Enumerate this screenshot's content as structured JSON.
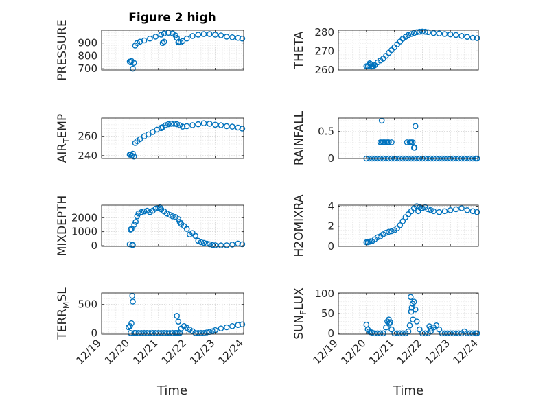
{
  "figure": {
    "title": "Figure 2 high",
    "x_axis_label": "Time",
    "x_tick_labels": [
      "12/19",
      "12/20",
      "12/21",
      "12/22",
      "12/23",
      "12/24"
    ],
    "marker_color": "#0072BD",
    "grid_color": "#d4d4d4"
  },
  "chart_data": [
    {
      "type": "scatter",
      "ylabel": "PRESSURE",
      "ylim": [
        690,
        1000
      ],
      "xlim": [
        0,
        5
      ],
      "yticks": [
        700,
        800,
        900
      ],
      "ytick_labels": [
        "700",
        "800",
        "900"
      ],
      "grid": true,
      "x": [
        0.99,
        1.02,
        1.05,
        1.1,
        1.14,
        1.18,
        1.25,
        1.35,
        1.5,
        1.7,
        1.9,
        2.1,
        2.2,
        2.35,
        2.5,
        2.6,
        2.65,
        2.72,
        2.78,
        2.85,
        3.0,
        3.2,
        3.4,
        3.6,
        3.8,
        4.0,
        4.2,
        4.4,
        4.6,
        4.8,
        4.95,
        2.15,
        2.2,
        2.7
      ],
      "y": [
        755,
        750,
        760,
        700,
        745,
        880,
        900,
        910,
        920,
        935,
        950,
        965,
        975,
        980,
        975,
        960,
        940,
        910,
        905,
        915,
        935,
        955,
        965,
        970,
        970,
        965,
        960,
        950,
        945,
        940,
        935,
        900,
        910,
        905
      ]
    },
    {
      "type": "scatter",
      "ylabel": "THETA",
      "ylim": [
        260,
        281
      ],
      "xlim": [
        0,
        5
      ],
      "yticks": [
        260,
        270,
        280
      ],
      "ytick_labels": [
        "260",
        "270",
        "280"
      ],
      "grid": true,
      "x": [
        1.0,
        1.05,
        1.1,
        1.15,
        1.2,
        1.25,
        1.3,
        1.4,
        1.5,
        1.6,
        1.7,
        1.8,
        1.9,
        2.0,
        2.1,
        2.2,
        2.3,
        2.4,
        2.5,
        2.6,
        2.7,
        2.8,
        2.9,
        3.0,
        3.1,
        3.2,
        3.4,
        3.6,
        3.8,
        4.0,
        4.2,
        4.4,
        4.6,
        4.8,
        4.95,
        1.12,
        1.18
      ],
      "y": [
        262,
        262,
        262.5,
        263,
        262,
        262,
        262.5,
        264,
        265,
        266,
        267.5,
        269,
        270.5,
        272,
        273.5,
        275,
        276.5,
        277.5,
        278.5,
        279,
        279.5,
        280,
        280.2,
        280.3,
        280.2,
        280,
        279.5,
        279.3,
        279,
        278.8,
        278.5,
        278,
        277.5,
        277,
        276.8,
        263.5,
        261.8
      ]
    },
    {
      "type": "scatter",
      "ylabel": "AIR_TEMP",
      "ylim": [
        237,
        279
      ],
      "xlim": [
        0,
        5
      ],
      "yticks": [
        240,
        260
      ],
      "ytick_labels": [
        "240",
        "260"
      ],
      "grid": true,
      "x": [
        0.99,
        1.02,
        1.06,
        1.1,
        1.14,
        1.18,
        1.25,
        1.35,
        1.5,
        1.65,
        1.8,
        1.95,
        2.1,
        2.25,
        2.35,
        2.45,
        2.55,
        2.65,
        2.75,
        2.85,
        3.0,
        3.2,
        3.4,
        3.6,
        3.8,
        4.0,
        4.2,
        4.4,
        4.6,
        4.8,
        4.95,
        2.1,
        2.15
      ],
      "y": [
        241,
        241,
        240,
        242,
        239,
        253,
        255,
        257,
        260,
        262,
        264.5,
        267,
        269,
        271.5,
        272.5,
        273,
        273,
        272.5,
        271.5,
        270,
        270.5,
        271.5,
        272.5,
        273.5,
        273,
        272,
        271.5,
        270.5,
        270,
        269,
        268,
        268.5,
        269.5
      ]
    },
    {
      "type": "scatter",
      "ylabel": "RAINFALL",
      "ylim": [
        0,
        0.75
      ],
      "xlim": [
        0,
        5
      ],
      "yticks": [
        0,
        0.5
      ],
      "ytick_labels": [
        "0",
        "0.5"
      ],
      "grid": true,
      "x": [
        1.0,
        1.1,
        1.2,
        1.3,
        1.4,
        1.5,
        1.6,
        1.7,
        1.8,
        1.9,
        2.0,
        2.1,
        2.2,
        2.3,
        2.4,
        2.5,
        2.6,
        2.7,
        2.8,
        2.9,
        3.0,
        3.1,
        3.2,
        3.3,
        3.4,
        3.5,
        3.6,
        3.7,
        3.8,
        3.9,
        4.0,
        4.1,
        4.2,
        4.3,
        4.4,
        4.5,
        4.6,
        4.7,
        4.8,
        4.9,
        4.95,
        1.5,
        1.55,
        1.6,
        1.65,
        1.7,
        1.75,
        1.8,
        1.9,
        2.45,
        2.55,
        2.6,
        2.65,
        2.7,
        2.72,
        1.55,
        2.75
      ],
      "y": [
        0,
        0,
        0,
        0,
        0,
        0,
        0,
        0,
        0,
        0,
        0,
        0,
        0,
        0,
        0,
        0,
        0,
        0,
        0,
        0,
        0,
        0,
        0,
        0,
        0,
        0,
        0,
        0,
        0,
        0,
        0,
        0,
        0,
        0,
        0,
        0,
        0,
        0,
        0,
        0,
        0,
        0.3,
        0.3,
        0.3,
        0.3,
        0.3,
        0.3,
        0.3,
        0.3,
        0.3,
        0.3,
        0.3,
        0.3,
        0.2,
        0.2,
        0.7,
        0.6
      ]
    },
    {
      "type": "scatter",
      "ylabel": "MIXDEPTH",
      "ylim": [
        -50,
        2900
      ],
      "xlim": [
        0,
        5
      ],
      "yticks": [
        0,
        1000,
        2000
      ],
      "ytick_labels": [
        "0",
        "1000",
        "2000"
      ],
      "grid": true,
      "x": [
        0.99,
        1.02,
        1.05,
        1.1,
        1.15,
        1.2,
        1.25,
        1.3,
        1.4,
        1.5,
        1.6,
        1.7,
        1.8,
        1.9,
        2.0,
        2.05,
        2.1,
        2.2,
        2.3,
        2.4,
        2.5,
        2.6,
        2.7,
        2.75,
        2.8,
        2.9,
        3.0,
        3.1,
        3.2,
        3.3,
        3.4,
        3.5,
        3.6,
        3.7,
        3.8,
        3.9,
        4.0,
        4.2,
        4.4,
        4.6,
        4.8,
        4.95,
        1.08
      ],
      "y": [
        100,
        1150,
        1200,
        50,
        1500,
        1700,
        2100,
        2300,
        2400,
        2450,
        2500,
        2400,
        2500,
        2650,
        2700,
        2750,
        2600,
        2450,
        2300,
        2200,
        2100,
        2050,
        1900,
        1700,
        1550,
        1400,
        1200,
        800,
        900,
        700,
        350,
        250,
        200,
        150,
        100,
        50,
        30,
        20,
        30,
        80,
        150,
        100,
        50
      ]
    },
    {
      "type": "scatter",
      "ylabel": "H2OMIXRA",
      "ylim": [
        0,
        4.1
      ],
      "xlim": [
        0,
        5
      ],
      "yticks": [
        0,
        2,
        4
      ],
      "ytick_labels": [
        "0",
        "2",
        "4"
      ],
      "grid": true,
      "x": [
        1.0,
        1.05,
        1.1,
        1.15,
        1.2,
        1.3,
        1.4,
        1.5,
        1.6,
        1.7,
        1.8,
        1.9,
        2.0,
        2.1,
        2.2,
        2.3,
        2.4,
        2.5,
        2.6,
        2.7,
        2.8,
        2.9,
        3.0,
        3.1,
        3.2,
        3.3,
        3.4,
        3.6,
        3.8,
        4.0,
        4.2,
        4.4,
        4.6,
        4.8,
        4.95,
        2.85,
        2.95
      ],
      "y": [
        0.4,
        0.4,
        0.45,
        0.5,
        0.5,
        0.7,
        0.9,
        1.0,
        1.2,
        1.35,
        1.45,
        1.5,
        1.6,
        1.8,
        2.1,
        2.5,
        2.9,
        3.2,
        3.5,
        3.8,
        4.0,
        3.9,
        3.8,
        3.9,
        3.7,
        3.6,
        3.5,
        3.4,
        3.5,
        3.6,
        3.7,
        3.8,
        3.6,
        3.5,
        3.4,
        3.5,
        3.8
      ]
    },
    {
      "type": "scatter",
      "ylabel": "TERR_MSL",
      "ylim": [
        -20,
        700
      ],
      "xlim": [
        0,
        5
      ],
      "yticks": [
        0,
        500
      ],
      "ytick_labels": [
        "0",
        "500"
      ],
      "grid": true,
      "x": [
        0.95,
        1.0,
        1.02,
        1.05,
        1.08,
        1.1,
        1.15,
        1.2,
        1.3,
        1.4,
        1.5,
        1.6,
        1.7,
        1.8,
        1.9,
        2.0,
        2.1,
        2.2,
        2.3,
        2.4,
        2.5,
        2.6,
        2.65,
        2.7,
        2.75,
        2.8,
        2.9,
        3.0,
        3.1,
        3.2,
        3.3,
        3.4,
        3.5,
        3.6,
        3.7,
        3.8,
        3.9,
        4.0,
        4.2,
        4.4,
        4.6,
        4.8,
        4.95,
        2.65,
        2.7
      ],
      "y": [
        100,
        120,
        0,
        170,
        650,
        550,
        0,
        0,
        0,
        0,
        0,
        0,
        0,
        0,
        0,
        0,
        0,
        0,
        0,
        0,
        0,
        0,
        0,
        0,
        0,
        80,
        120,
        90,
        60,
        30,
        0,
        0,
        0,
        0,
        10,
        20,
        30,
        50,
        80,
        100,
        120,
        140,
        150,
        300,
        200
      ]
    },
    {
      "type": "scatter",
      "ylabel": "SUN_FLUX",
      "ylim": [
        -2,
        102
      ],
      "xlim": [
        0,
        5
      ],
      "yticks": [
        0,
        50,
        100
      ],
      "ytick_labels": [
        "0",
        "50",
        "100"
      ],
      "grid": true,
      "x": [
        1.0,
        1.05,
        1.1,
        1.15,
        1.2,
        1.3,
        1.4,
        1.5,
        1.6,
        1.7,
        1.75,
        1.8,
        1.85,
        1.9,
        2.0,
        2.1,
        2.2,
        2.3,
        2.4,
        2.5,
        2.55,
        2.6,
        2.65,
        2.7,
        2.75,
        2.8,
        2.9,
        3.0,
        3.1,
        3.2,
        3.3,
        3.4,
        3.5,
        3.6,
        3.7,
        3.8,
        3.9,
        4.0,
        4.1,
        4.2,
        4.3,
        4.4,
        4.5,
        4.6,
        4.7,
        4.8,
        4.9,
        4.95,
        2.58,
        2.62,
        2.66,
        1.82,
        3.25,
        3.3
      ],
      "y": [
        22,
        10,
        5,
        3,
        2,
        0,
        0,
        0,
        0,
        15,
        30,
        35,
        28,
        10,
        0,
        0,
        0,
        0,
        0,
        5,
        20,
        55,
        75,
        80,
        60,
        30,
        10,
        0,
        0,
        0,
        5,
        15,
        20,
        10,
        0,
        0,
        0,
        0,
        0,
        0,
        0,
        0,
        5,
        0,
        0,
        0,
        0,
        0,
        92,
        65,
        35,
        25,
        18,
        12
      ]
    }
  ]
}
